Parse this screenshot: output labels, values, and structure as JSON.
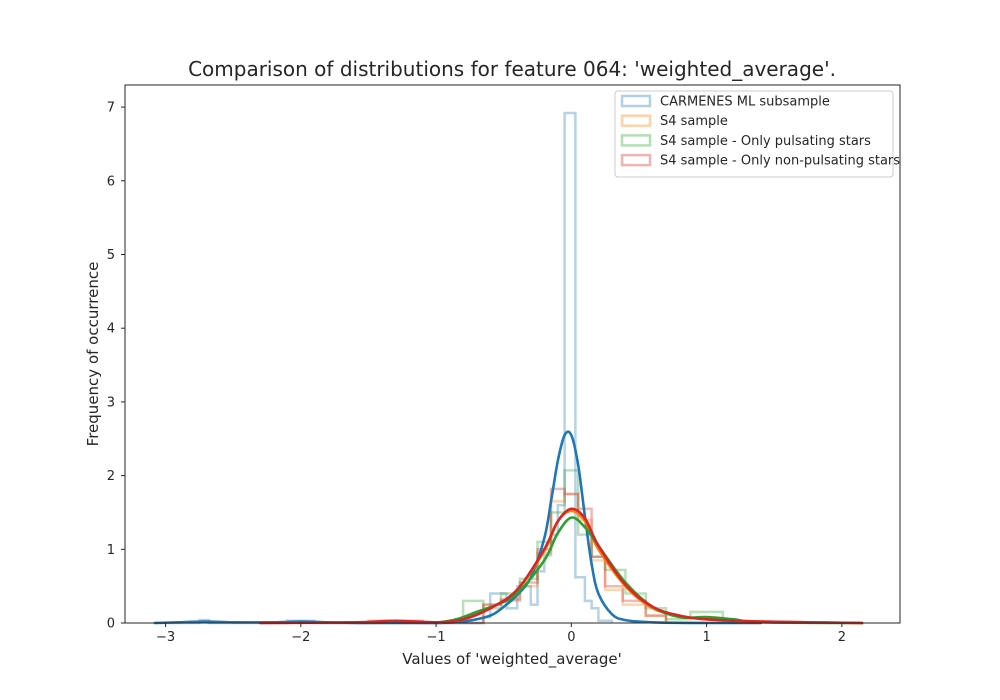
{
  "chart_data": {
    "type": "histogram",
    "title": "Comparison of distributions for feature 064: 'weighted_average'.",
    "xlabel": "Values of 'weighted_average'",
    "ylabel": "Frequency of occurrence",
    "xlim": [
      -3.3,
      2.43
    ],
    "ylim": [
      0,
      7.3
    ],
    "xticks": [
      -3,
      -2,
      -1,
      0,
      1,
      2
    ],
    "xtick_labels": [
      "−3",
      "−2",
      "−1",
      "0",
      "1",
      "2"
    ],
    "yticks": [
      0,
      1,
      2,
      3,
      4,
      5,
      6,
      7
    ],
    "ytick_labels": [
      "0",
      "1",
      "2",
      "3",
      "4",
      "5",
      "6",
      "7"
    ],
    "grid": false,
    "legend_position": "top-right",
    "series": [
      {
        "name": "CARMENES ML subsample",
        "color": "#1f77b4",
        "hist_step": [
          [
            -3.08,
            0
          ],
          [
            -2.75,
            0
          ],
          [
            -2.75,
            0.04
          ],
          [
            -2.68,
            0.04
          ],
          [
            -2.68,
            0
          ],
          [
            -2.1,
            0
          ],
          [
            -2.1,
            0.03
          ],
          [
            -1.9,
            0.03
          ],
          [
            -1.9,
            0
          ],
          [
            -0.65,
            0
          ],
          [
            -0.65,
            0.08
          ],
          [
            -0.6,
            0.08
          ],
          [
            -0.6,
            0.4
          ],
          [
            -0.48,
            0.4
          ],
          [
            -0.48,
            0.2
          ],
          [
            -0.4,
            0.2
          ],
          [
            -0.4,
            0.5
          ],
          [
            -0.3,
            0.5
          ],
          [
            -0.3,
            0.25
          ],
          [
            -0.25,
            0.25
          ],
          [
            -0.25,
            0.7
          ],
          [
            -0.2,
            0.7
          ],
          [
            -0.2,
            0.92
          ],
          [
            -0.15,
            0.92
          ],
          [
            -0.15,
            1.2
          ],
          [
            -0.1,
            1.2
          ],
          [
            -0.1,
            1.6
          ],
          [
            -0.05,
            1.6
          ],
          [
            -0.05,
            6.92
          ],
          [
            0.03,
            6.92
          ],
          [
            0.03,
            0.62
          ],
          [
            0.1,
            0.62
          ],
          [
            0.1,
            0.3
          ],
          [
            0.15,
            0.3
          ],
          [
            0.15,
            0.2
          ],
          [
            0.2,
            0.2
          ],
          [
            0.2,
            0.03
          ],
          [
            0.3,
            0.03
          ],
          [
            0.3,
            0
          ]
        ],
        "kde": {
          "x": [
            -3.08,
            -2.9,
            -2.7,
            -2.5,
            -2.2,
            -2.0,
            -1.8,
            -1.5,
            -1.2,
            -1.0,
            -0.8,
            -0.6,
            -0.5,
            -0.4,
            -0.3,
            -0.2,
            -0.15,
            -0.1,
            -0.05,
            0.0,
            0.05,
            0.1,
            0.15,
            0.2,
            0.3,
            0.4,
            0.6,
            1.0,
            1.4
          ],
          "y": [
            0.0,
            0.01,
            0.02,
            0.01,
            0.01,
            0.02,
            0.01,
            0.0,
            0.0,
            0.0,
            0.02,
            0.1,
            0.22,
            0.38,
            0.62,
            1.15,
            1.65,
            2.2,
            2.55,
            2.55,
            2.15,
            1.45,
            0.8,
            0.4,
            0.12,
            0.04,
            0.01,
            0.0,
            0.0
          ]
        }
      },
      {
        "name": "S4 sample",
        "color": "#ff7f0e",
        "hist_step": [
          [
            -0.65,
            0
          ],
          [
            -0.65,
            0.25
          ],
          [
            -0.52,
            0.25
          ],
          [
            -0.52,
            0.3
          ],
          [
            -0.38,
            0.3
          ],
          [
            -0.38,
            0.5
          ],
          [
            -0.25,
            0.5
          ],
          [
            -0.25,
            0.95
          ],
          [
            -0.15,
            0.95
          ],
          [
            -0.15,
            1.65
          ],
          [
            -0.05,
            1.65
          ],
          [
            -0.05,
            1.75
          ],
          [
            0.05,
            1.75
          ],
          [
            0.05,
            1.4
          ],
          [
            0.15,
            1.4
          ],
          [
            0.15,
            0.85
          ],
          [
            0.25,
            0.85
          ],
          [
            0.25,
            0.45
          ],
          [
            0.38,
            0.45
          ],
          [
            0.38,
            0.25
          ],
          [
            0.55,
            0.25
          ],
          [
            0.55,
            0.1
          ],
          [
            0.7,
            0.1
          ],
          [
            0.7,
            0
          ]
        ],
        "kde": {
          "x": [
            -1.0,
            -0.8,
            -0.6,
            -0.4,
            -0.2,
            -0.1,
            0.0,
            0.1,
            0.2,
            0.4,
            0.6,
            0.8,
            1.0,
            1.4,
            2.15
          ],
          "y": [
            0.0,
            0.05,
            0.2,
            0.45,
            0.98,
            1.38,
            1.52,
            1.38,
            1.0,
            0.5,
            0.2,
            0.1,
            0.05,
            0.02,
            0.0
          ]
        }
      },
      {
        "name": "S4 sample - Only pulsating stars",
        "color": "#2ca02c",
        "hist_step": [
          [
            -0.8,
            0
          ],
          [
            -0.8,
            0.3
          ],
          [
            -0.65,
            0.3
          ],
          [
            -0.65,
            0.2
          ],
          [
            -0.52,
            0.2
          ],
          [
            -0.52,
            0.4
          ],
          [
            -0.38,
            0.4
          ],
          [
            -0.38,
            0.6
          ],
          [
            -0.25,
            0.6
          ],
          [
            -0.25,
            1.1
          ],
          [
            -0.15,
            1.1
          ],
          [
            -0.15,
            1.5
          ],
          [
            -0.05,
            1.5
          ],
          [
            -0.05,
            2.07
          ],
          [
            0.05,
            2.07
          ],
          [
            0.05,
            1.2
          ],
          [
            0.15,
            1.2
          ],
          [
            0.15,
            0.9
          ],
          [
            0.25,
            0.9
          ],
          [
            0.25,
            0.72
          ],
          [
            0.4,
            0.72
          ],
          [
            0.4,
            0.4
          ],
          [
            0.55,
            0.4
          ],
          [
            0.55,
            0.2
          ],
          [
            0.7,
            0.2
          ],
          [
            0.7,
            0.05
          ],
          [
            0.88,
            0.05
          ],
          [
            0.88,
            0.15
          ],
          [
            1.12,
            0.15
          ],
          [
            1.12,
            0
          ]
        ],
        "kde": {
          "x": [
            -1.0,
            -0.85,
            -0.7,
            -0.55,
            -0.4,
            -0.2,
            -0.1,
            0.0,
            0.1,
            0.2,
            0.4,
            0.6,
            0.8,
            1.0,
            1.2,
            1.4,
            2.15
          ],
          "y": [
            0.0,
            0.05,
            0.15,
            0.25,
            0.4,
            0.85,
            1.22,
            1.43,
            1.3,
            1.05,
            0.55,
            0.22,
            0.08,
            0.08,
            0.05,
            0.01,
            0.0
          ]
        }
      },
      {
        "name": "S4 sample - Only non-pulsating stars",
        "color": "#d62728",
        "hist_step": [
          [
            -2.3,
            0
          ],
          [
            -1.5,
            0
          ],
          [
            -1.5,
            0.03
          ],
          [
            -1.1,
            0.03
          ],
          [
            -1.1,
            0
          ],
          [
            -0.65,
            0
          ],
          [
            -0.65,
            0.25
          ],
          [
            -0.52,
            0.25
          ],
          [
            -0.52,
            0.32
          ],
          [
            -0.38,
            0.32
          ],
          [
            -0.38,
            0.55
          ],
          [
            -0.25,
            0.55
          ],
          [
            -0.25,
            1.0
          ],
          [
            -0.15,
            1.0
          ],
          [
            -0.15,
            1.82
          ],
          [
            -0.05,
            1.82
          ],
          [
            -0.05,
            1.75
          ],
          [
            0.05,
            1.75
          ],
          [
            0.05,
            1.55
          ],
          [
            0.15,
            1.55
          ],
          [
            0.15,
            0.9
          ],
          [
            0.25,
            0.9
          ],
          [
            0.25,
            0.5
          ],
          [
            0.38,
            0.5
          ],
          [
            0.38,
            0.3
          ],
          [
            0.55,
            0.3
          ],
          [
            0.55,
            0.1
          ],
          [
            0.7,
            0.1
          ],
          [
            0.7,
            0
          ]
        ],
        "kde": {
          "x": [
            -2.3,
            -1.6,
            -1.3,
            -1.0,
            -0.8,
            -0.6,
            -0.4,
            -0.2,
            -0.1,
            0.0,
            0.1,
            0.2,
            0.4,
            0.6,
            0.8,
            1.0,
            1.4,
            2.15
          ],
          "y": [
            0.0,
            0.01,
            0.03,
            0.01,
            0.05,
            0.2,
            0.45,
            1.0,
            1.38,
            1.55,
            1.42,
            1.05,
            0.52,
            0.22,
            0.1,
            0.05,
            0.02,
            0.0
          ]
        }
      }
    ]
  }
}
